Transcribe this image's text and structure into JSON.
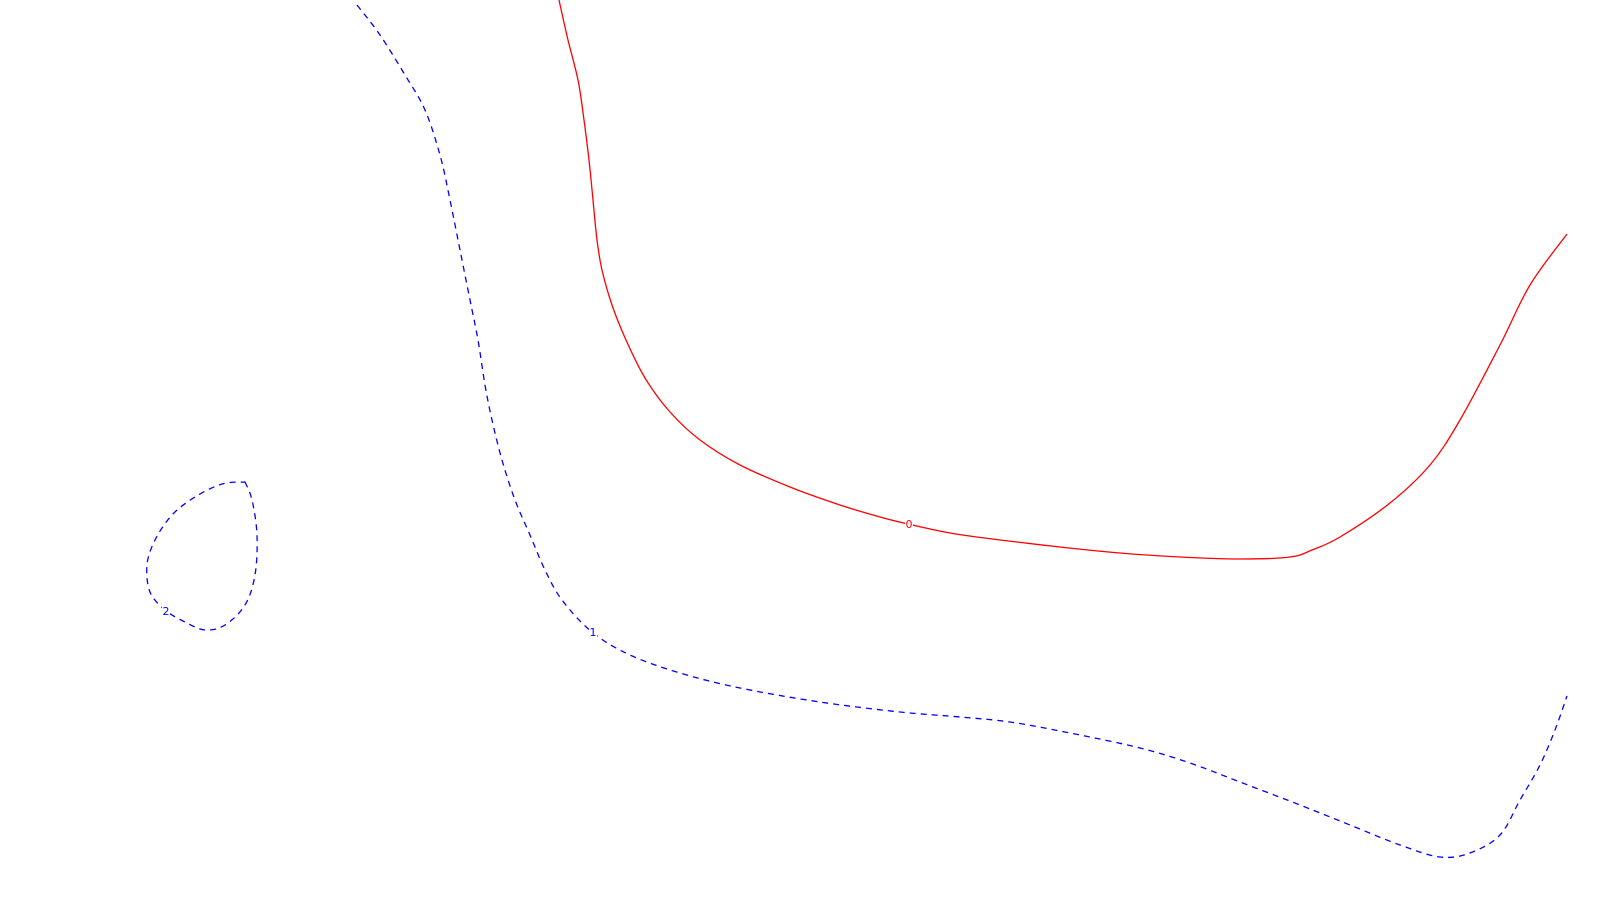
{
  "chart_data": {
    "type": "contour",
    "title": "",
    "xlabel": "",
    "ylabel": "",
    "contours": [
      {
        "level_label": "0",
        "color": "#ff0000",
        "line_style": "solid",
        "points": [
          [
            559,
            0
          ],
          [
            568,
            40
          ],
          [
            578,
            80
          ],
          [
            584,
            120
          ],
          [
            589,
            160
          ],
          [
            593,
            200
          ],
          [
            597,
            240
          ],
          [
            602,
            270
          ],
          [
            612,
            305
          ],
          [
            626,
            340
          ],
          [
            645,
            378
          ],
          [
            670,
            412
          ],
          [
            700,
            440
          ],
          [
            740,
            465
          ],
          [
            790,
            487
          ],
          [
            840,
            505
          ],
          [
            880,
            517
          ],
          [
            908,
            524
          ],
          [
            950,
            533
          ],
          [
            1000,
            540
          ],
          [
            1060,
            547
          ],
          [
            1120,
            553
          ],
          [
            1180,
            557
          ],
          [
            1240,
            559
          ],
          [
            1290,
            557
          ],
          [
            1312,
            550
          ],
          [
            1340,
            537
          ],
          [
            1390,
            503
          ],
          [
            1430,
            465
          ],
          [
            1460,
            420
          ],
          [
            1500,
            345
          ],
          [
            1530,
            285
          ],
          [
            1567,
            234
          ]
        ]
      },
      {
        "level_label": "1",
        "color": "#0000ff",
        "line_style": "dashed",
        "points": [
          [
            357,
            5
          ],
          [
            380,
            35
          ],
          [
            405,
            75
          ],
          [
            425,
            110
          ],
          [
            440,
            155
          ],
          [
            450,
            200
          ],
          [
            460,
            250
          ],
          [
            470,
            300
          ],
          [
            478,
            340
          ],
          [
            485,
            385
          ],
          [
            492,
            420
          ],
          [
            502,
            460
          ],
          [
            515,
            500
          ],
          [
            530,
            535
          ],
          [
            545,
            570
          ],
          [
            562,
            600
          ],
          [
            592,
            632
          ],
          [
            630,
            655
          ],
          [
            680,
            673
          ],
          [
            740,
            688
          ],
          [
            820,
            702
          ],
          [
            900,
            712
          ],
          [
            960,
            717
          ],
          [
            1010,
            722
          ],
          [
            1070,
            733
          ],
          [
            1140,
            748
          ],
          [
            1190,
            763
          ],
          [
            1240,
            782
          ],
          [
            1300,
            805
          ],
          [
            1350,
            825
          ],
          [
            1400,
            845
          ],
          [
            1440,
            857
          ],
          [
            1470,
            853
          ],
          [
            1500,
            835
          ],
          [
            1520,
            800
          ],
          [
            1540,
            765
          ],
          [
            1555,
            730
          ],
          [
            1567,
            696
          ]
        ]
      },
      {
        "level_label": "2",
        "color": "#0000ff",
        "line_style": "dashed",
        "closed": true,
        "points": [
          [
            245,
            482
          ],
          [
            252,
            500
          ],
          [
            257,
            535
          ],
          [
            255,
            575
          ],
          [
            245,
            605
          ],
          [
            225,
            625
          ],
          [
            205,
            630
          ],
          [
            185,
            622
          ],
          [
            165,
            610
          ],
          [
            150,
            592
          ],
          [
            147,
            565
          ],
          [
            155,
            540
          ],
          [
            172,
            515
          ],
          [
            195,
            497
          ],
          [
            222,
            484
          ],
          [
            245,
            482
          ]
        ]
      }
    ],
    "labels": [
      {
        "text": "0",
        "at": [
          909,
          524
        ],
        "color": "#ff0000"
      },
      {
        "text": "1",
        "at": [
          593,
          632
        ],
        "color": "#0000ff"
      },
      {
        "text": "2",
        "at": [
          166,
          611
        ],
        "color": "#0000ff"
      }
    ]
  }
}
